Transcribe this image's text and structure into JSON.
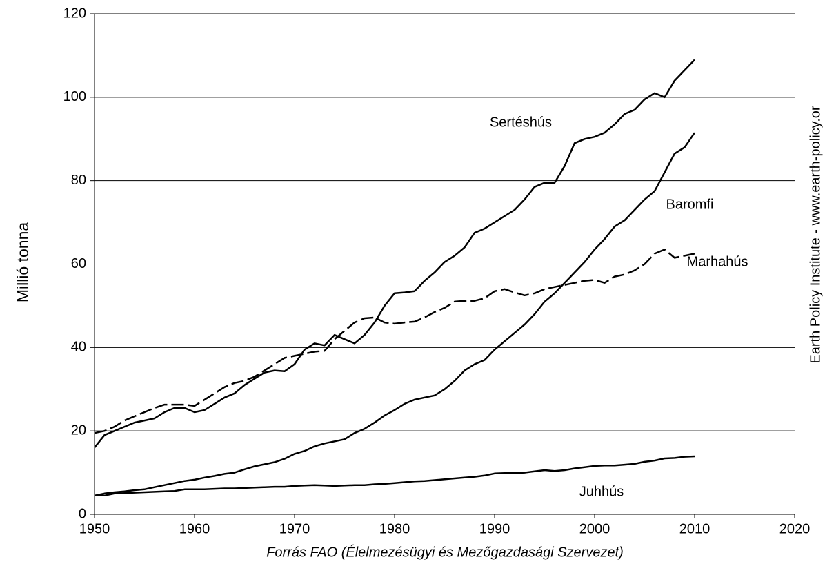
{
  "chart_data": {
    "type": "line",
    "y_label": "Millió tonna",
    "x_label": "Forrás FAO (Élelmezésügyi és Mezőgazdasági Szervezet)",
    "side_note": "Earth Policy Institute - www.earth-policy.or",
    "x": [
      1950,
      1951,
      1952,
      1953,
      1954,
      1955,
      1956,
      1957,
      1958,
      1959,
      1960,
      1961,
      1962,
      1963,
      1964,
      1965,
      1966,
      1967,
      1968,
      1969,
      1970,
      1971,
      1972,
      1973,
      1974,
      1975,
      1976,
      1977,
      1978,
      1979,
      1980,
      1981,
      1982,
      1983,
      1984,
      1985,
      1986,
      1987,
      1988,
      1989,
      1990,
      1991,
      1992,
      1993,
      1994,
      1995,
      1996,
      1997,
      1998,
      1999,
      2000,
      2001,
      2002,
      2003,
      2004,
      2005,
      2006,
      2007,
      2008,
      2009,
      2010
    ],
    "series": [
      {
        "name": "Sertéshús",
        "color": "#000000",
        "dashed": false,
        "values": [
          16,
          19,
          20,
          21,
          22,
          22.5,
          23,
          24.5,
          25.5,
          25.5,
          24.5,
          25,
          26.5,
          28,
          29,
          31,
          32.5,
          34,
          34.5,
          34.3,
          36,
          39.5,
          41,
          40.5,
          43,
          42,
          41,
          43,
          46,
          50,
          53,
          53.2,
          53.5,
          56,
          58,
          60.5,
          62,
          64,
          67.5,
          68.5,
          70,
          71.5,
          73,
          75.5,
          78.5,
          79.5,
          79.5,
          83.5,
          89,
          90,
          90.5,
          91.5,
          93.5,
          96,
          97,
          99.5,
          101,
          100,
          104,
          106.5,
          109
        ]
      },
      {
        "name": "Baromfi",
        "color": "#000000",
        "dashed": false,
        "values": [
          4.5,
          5,
          5.3,
          5.5,
          5.8,
          6,
          6.5,
          7,
          7.5,
          8,
          8.3,
          8.8,
          9.2,
          9.7,
          10,
          10.8,
          11.5,
          12,
          12.5,
          13.3,
          14.5,
          15.2,
          16.3,
          17,
          17.5,
          18,
          19.5,
          20.5,
          22,
          23.7,
          25,
          26.5,
          27.5,
          28,
          28.5,
          30,
          32,
          34.5,
          36,
          37,
          39.5,
          41.5,
          43.5,
          45.5,
          48,
          51,
          53,
          55.5,
          58,
          60.5,
          63.5,
          66,
          69,
          70.5,
          73,
          75.5,
          77.5,
          82,
          86.5,
          88,
          91.5
        ]
      },
      {
        "name": "Marhahús",
        "color": "#000000",
        "dashed": true,
        "values": [
          19.5,
          20,
          21,
          22.5,
          23.5,
          24.5,
          25.5,
          26.3,
          26.3,
          26.3,
          26,
          27.5,
          29,
          30.5,
          31.5,
          32,
          33,
          34.5,
          36,
          37.5,
          38,
          38.5,
          39,
          39.2,
          42,
          44,
          46,
          47,
          47.2,
          46,
          45.7,
          46,
          46.2,
          47.2,
          48.5,
          49.5,
          51,
          51.2,
          51.2,
          51.8,
          53.5,
          54,
          53.2,
          52.5,
          53,
          54,
          54.5,
          55,
          55.5,
          56,
          56.2,
          55.5,
          57,
          57.5,
          58.5,
          60,
          62.5,
          63.5,
          61.5,
          62,
          62.5
        ]
      },
      {
        "name": "Juhhús",
        "color": "#000000",
        "dashed": false,
        "values": [
          4.5,
          4.5,
          5,
          5.1,
          5.2,
          5.3,
          5.4,
          5.5,
          5.6,
          6,
          6,
          6,
          6.1,
          6.2,
          6.2,
          6.3,
          6.4,
          6.5,
          6.6,
          6.6,
          6.8,
          6.9,
          7,
          6.9,
          6.8,
          6.9,
          7,
          7,
          7.2,
          7.3,
          7.5,
          7.7,
          7.9,
          8,
          8.2,
          8.4,
          8.6,
          8.8,
          9,
          9.3,
          9.8,
          9.9,
          9.9,
          10,
          10.3,
          10.6,
          10.4,
          10.6,
          11,
          11.3,
          11.6,
          11.7,
          11.7,
          11.9,
          12.1,
          12.6,
          12.9,
          13.4,
          13.5,
          13.8,
          13.9
        ]
      }
    ],
    "xlim": [
      1950,
      2020
    ],
    "xticks": [
      1950,
      1960,
      1970,
      1980,
      1990,
      2000,
      2010,
      2020
    ],
    "ylim": [
      0,
      120
    ],
    "yticks": [
      0,
      20,
      40,
      60,
      80,
      100,
      120
    ],
    "grid": true
  }
}
